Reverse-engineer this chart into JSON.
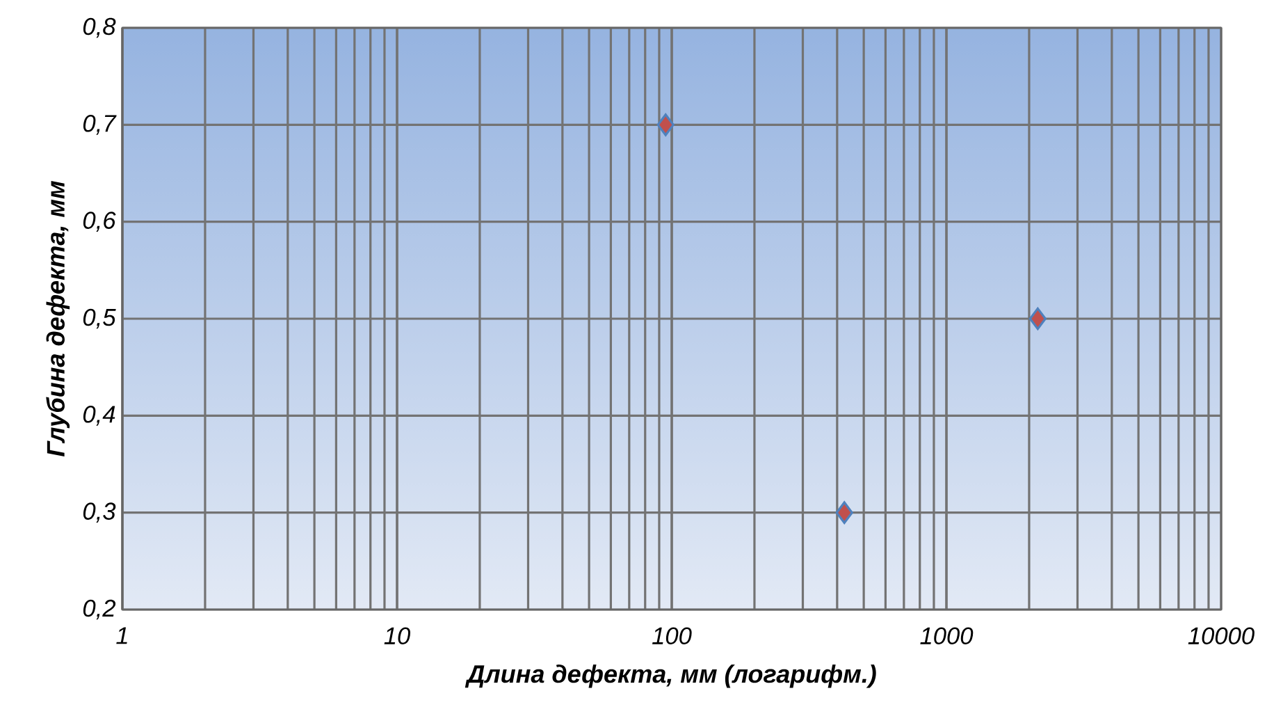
{
  "chart_data": {
    "type": "scatter",
    "xlabel": "Длина дефекта, мм (логарифм.)",
    "ylabel": "Глубина дефекта, мм",
    "x": [
      95,
      425,
      2150
    ],
    "values": [
      0.7,
      0.3,
      0.5
    ],
    "color": "#c0504d",
    "marker": "diamond",
    "log": "x",
    "grid": true,
    "xlim": [
      1,
      10000
    ],
    "xticks": [
      1,
      10,
      100,
      1000,
      10000
    ],
    "ylim": [
      0.2,
      0.8
    ],
    "yticks": [
      {
        "value": 0.2,
        "label": "0,2"
      },
      {
        "value": 0.3,
        "label": "0,3"
      },
      {
        "value": 0.4,
        "label": "0,4"
      },
      {
        "value": 0.5,
        "label": "0,5"
      },
      {
        "value": 0.6,
        "label": "0,6"
      },
      {
        "value": 0.7,
        "label": "0,7"
      },
      {
        "value": 0.8,
        "label": "0,8"
      }
    ]
  }
}
